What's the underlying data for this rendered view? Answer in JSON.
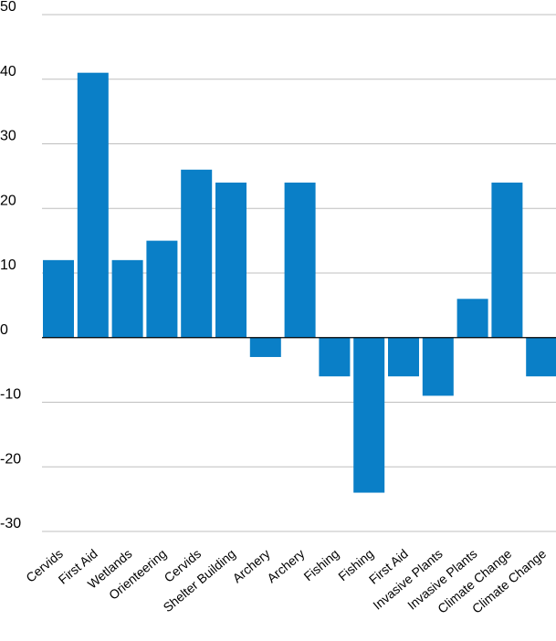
{
  "chart_data": {
    "type": "bar",
    "title": "",
    "xlabel": "",
    "ylabel": "",
    "categories": [
      "Cervids",
      "First Aid",
      "Wetlands",
      "Orienteering",
      "Cervids",
      "Shelter Building",
      "Archery",
      "Archery",
      "Fishing",
      "Fishing",
      "First Aid",
      "Invasive Plants",
      "Invasive Plants",
      "Climate Change",
      "Climate Change"
    ],
    "values": [
      12,
      41,
      12,
      15,
      26,
      24,
      -3,
      24,
      -6,
      -24,
      -6,
      -9,
      6,
      24,
      -6
    ],
    "ylim": [
      -30,
      50
    ],
    "yticks": [
      -30,
      -20,
      -10,
      0,
      10,
      20,
      30,
      40,
      50
    ],
    "ytick_labels": [
      "-30",
      "-20",
      "-10",
      "0",
      "10",
      "20",
      "30",
      "40",
      "50"
    ],
    "grid": true,
    "legend": "none",
    "bar_color": "#0a7fc7"
  }
}
